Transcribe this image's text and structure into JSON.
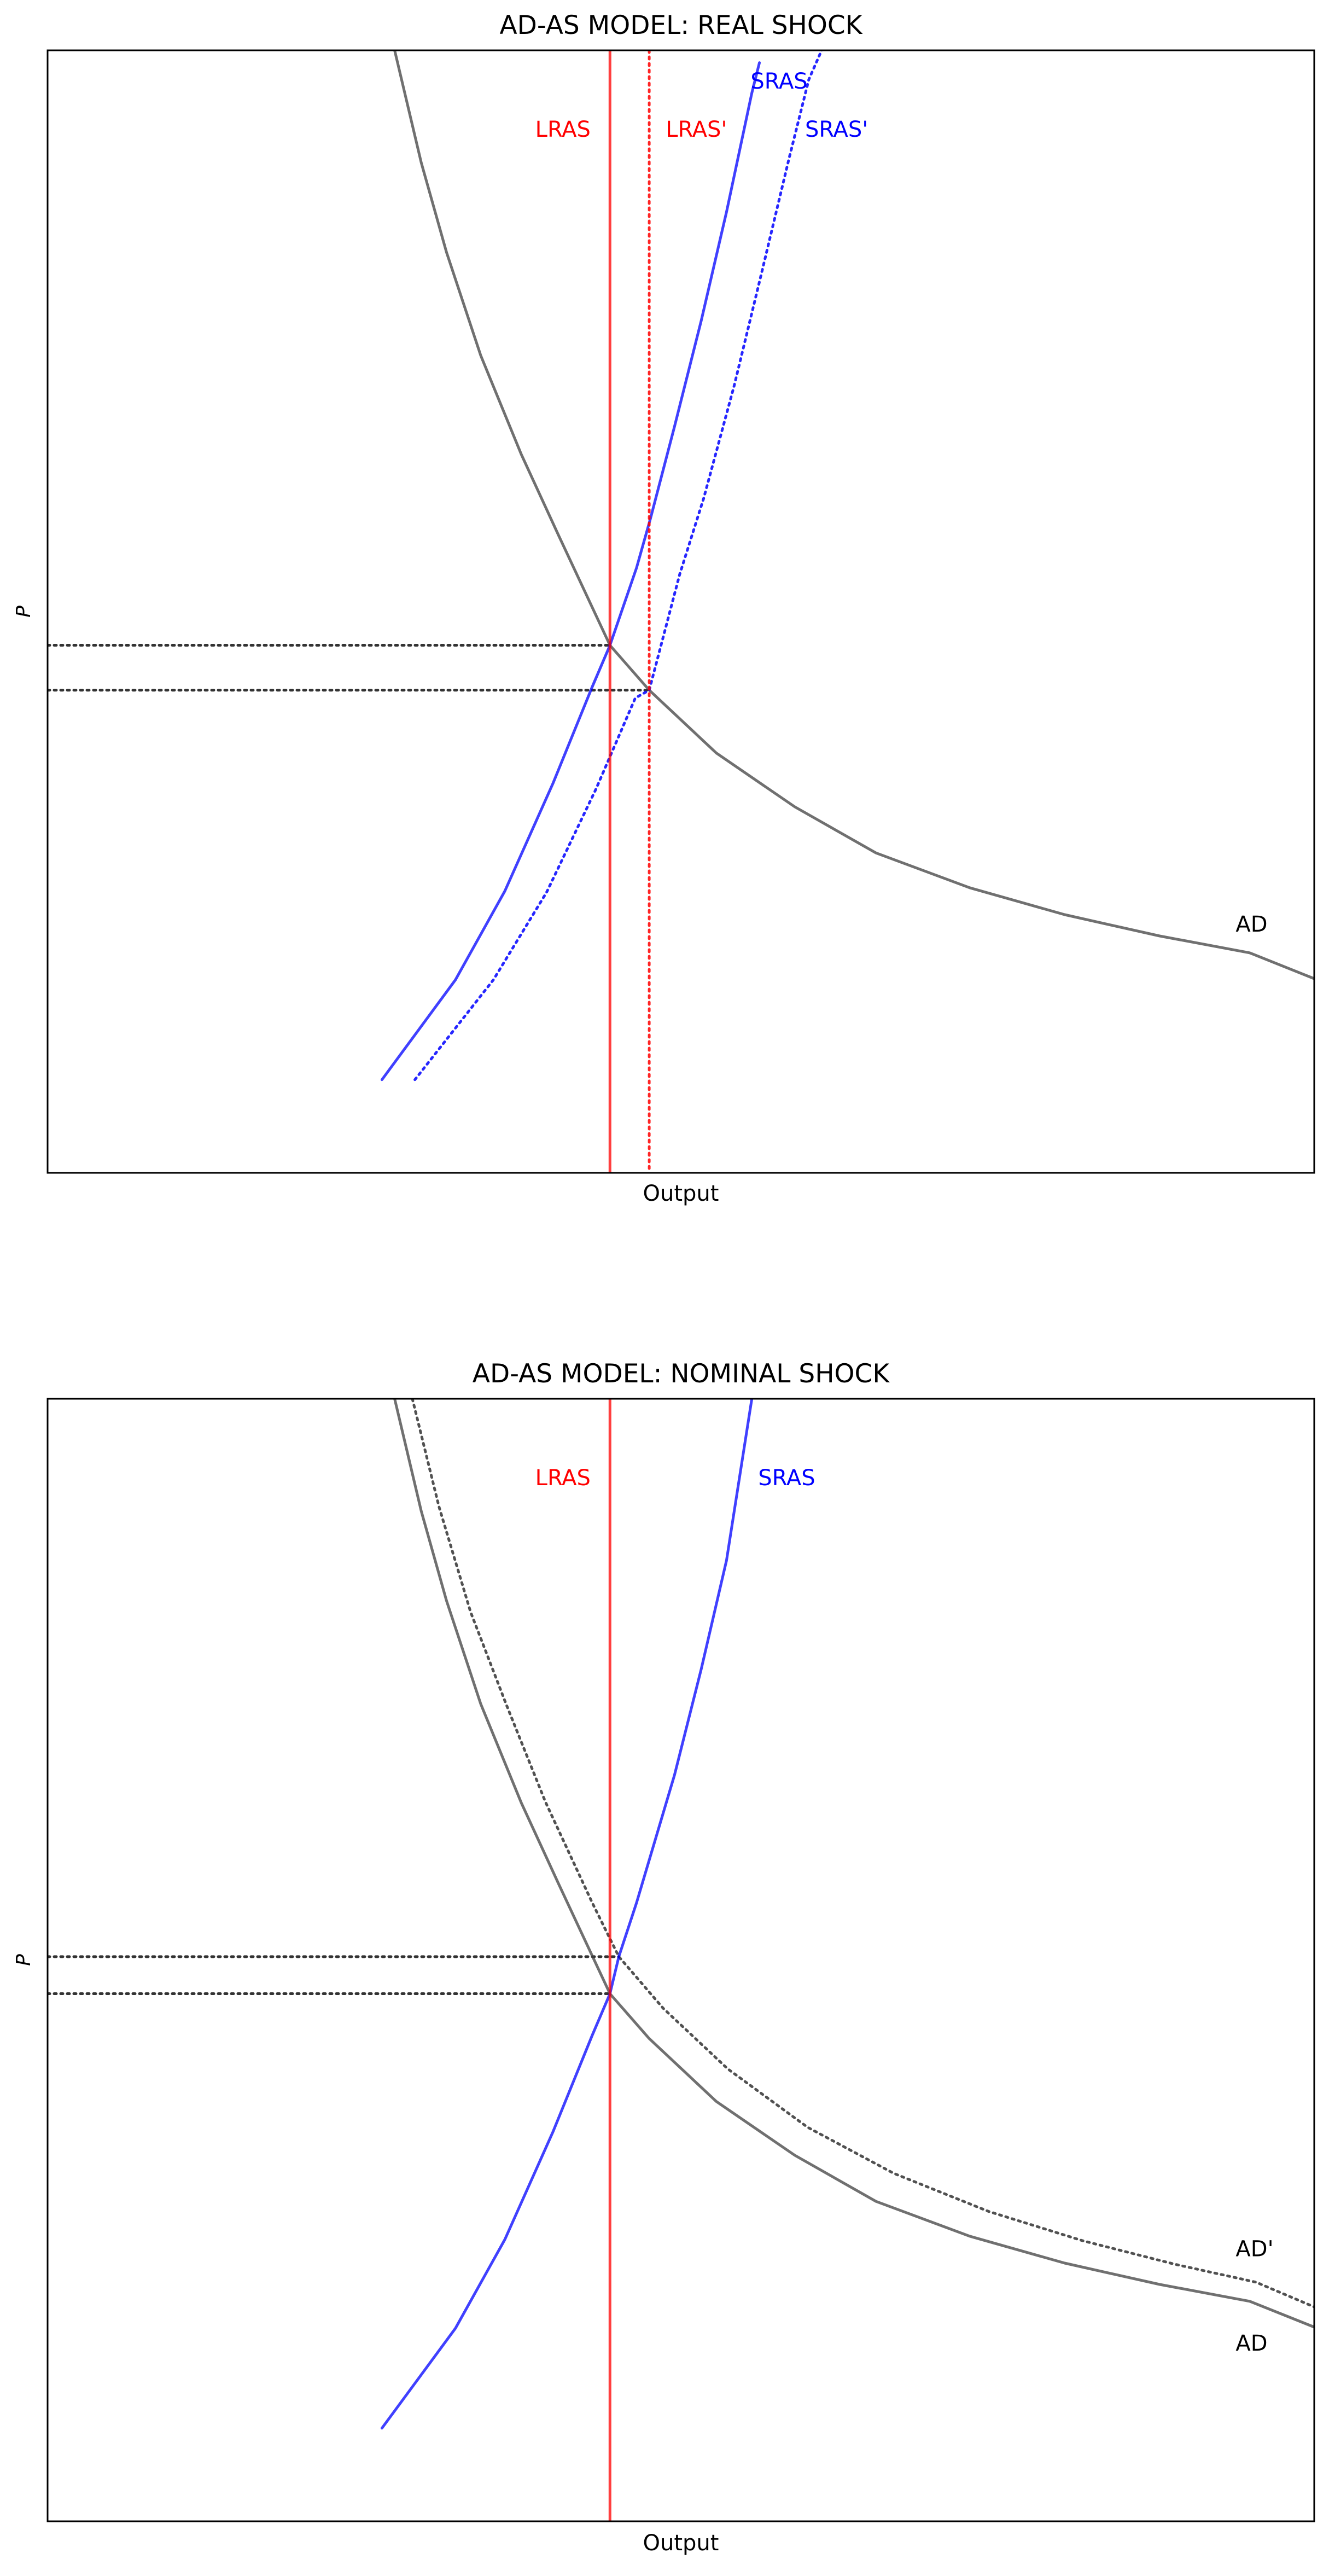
{
  "chart_data": [
    {
      "type": "line",
      "title": "AD-AS MODEL: REAL SHOCK",
      "xlabel": "Output",
      "ylabel": "P",
      "xticks": false,
      "yticks": false,
      "grid": false,
      "xlim": [
        0,
        100
      ],
      "ylim": [
        0,
        100
      ],
      "colors": {
        "lras": "#ff0000",
        "sras": "#0000ff",
        "ad": "#404040",
        "guide": "#333333"
      },
      "vlines": [
        {
          "label": "LRAS",
          "x": 44.4,
          "style": "solid",
          "color": "#ff0000",
          "label_x": 38.5,
          "label_y": 92.3
        },
        {
          "label": "LRAS'",
          "x": 47.5,
          "style": "dotted",
          "color": "#ff0000",
          "label_x": 48.8,
          "label_y": 92.3
        }
      ],
      "sras_curves": [
        {
          "label": "SRAS",
          "style": "solid",
          "color": "#0000ff",
          "points": [
            [
              26.4,
              8.3
            ],
            [
              32.2,
              17.2
            ],
            [
              36.1,
              25.1
            ],
            [
              39.9,
              34.7
            ],
            [
              43.0,
              43.3
            ],
            [
              44.4,
              47.0
            ],
            [
              46.5,
              53.9
            ],
            [
              47.6,
              58.3
            ],
            [
              49.5,
              66.5
            ],
            [
              51.6,
              75.9
            ],
            [
              53.6,
              85.6
            ],
            [
              55.6,
              96.2
            ],
            [
              56.2,
              98.9
            ]
          ],
          "label_x": 55.5,
          "label_y": 96.6
        },
        {
          "label": "SRAS'",
          "style": "dotted",
          "color": "#0000ff",
          "points": [
            [
              29.0,
              8.3
            ],
            [
              35.2,
              17.2
            ],
            [
              39.4,
              25.0
            ],
            [
              43.3,
              34.2
            ],
            [
              46.4,
              42.3
            ],
            [
              47.5,
              43.0
            ],
            [
              49.9,
              53.3
            ],
            [
              51.8,
              60.1
            ],
            [
              54.2,
              70.1
            ],
            [
              56.4,
              80.3
            ],
            [
              58.5,
              90.2
            ],
            [
              60.1,
              97.4
            ],
            [
              61.5,
              101.0
            ]
          ],
          "label_x": 59.8,
          "label_y": 92.3
        }
      ],
      "ad_curves": [
        {
          "label": "AD",
          "style": "solid",
          "color": "#404040",
          "points": [
            [
              27.4,
              100.0
            ],
            [
              29.5,
              90.0
            ],
            [
              31.5,
              82.0
            ],
            [
              34.2,
              72.8
            ],
            [
              37.4,
              64.0
            ],
            [
              40.3,
              56.9
            ],
            [
              44.4,
              47.0
            ],
            [
              47.5,
              43.0
            ],
            [
              52.8,
              37.4
            ],
            [
              59.0,
              32.6
            ],
            [
              65.4,
              28.5
            ],
            [
              72.8,
              25.4
            ],
            [
              80.3,
              23.0
            ],
            [
              87.8,
              21.1
            ],
            [
              94.9,
              19.6
            ],
            [
              100.0,
              17.3
            ]
          ],
          "label_x": 93.8,
          "label_y": 21.5
        }
      ],
      "hlines": [
        {
          "y": 47.0,
          "x_from": 0,
          "x_to": 44.4,
          "style": "dotted"
        },
        {
          "y": 43.0,
          "x_from": 0,
          "x_to": 47.5,
          "style": "dotted"
        }
      ]
    },
    {
      "type": "line",
      "title": "AD-AS MODEL: NOMINAL SHOCK",
      "xlabel": "Output",
      "ylabel": "P",
      "xticks": false,
      "yticks": false,
      "grid": false,
      "xlim": [
        0,
        100
      ],
      "ylim": [
        0,
        100
      ],
      "colors": {
        "lras": "#ff0000",
        "sras": "#0000ff",
        "ad": "#404040",
        "guide": "#333333"
      },
      "vlines": [
        {
          "label": "LRAS",
          "x": 44.4,
          "style": "solid",
          "color": "#ff0000",
          "label_x": 38.5,
          "label_y": 92.3
        }
      ],
      "sras_curves": [
        {
          "label": "SRAS",
          "style": "solid",
          "color": "#0000ff",
          "points": [
            [
              26.4,
              8.3
            ],
            [
              32.2,
              17.2
            ],
            [
              36.1,
              25.1
            ],
            [
              39.9,
              34.7
            ],
            [
              43.0,
              43.3
            ],
            [
              44.4,
              47.0
            ],
            [
              45.1,
              50.3
            ],
            [
              46.5,
              55.1
            ],
            [
              49.5,
              66.5
            ],
            [
              51.6,
              75.9
            ],
            [
              53.6,
              85.6
            ],
            [
              55.6,
              100.0
            ]
          ],
          "label_x": 56.1,
          "label_y": 92.3
        }
      ],
      "ad_curves": [
        {
          "label": "AD",
          "style": "solid",
          "color": "#404040",
          "points": [
            [
              27.4,
              100.0
            ],
            [
              29.5,
              90.0
            ],
            [
              31.5,
              82.0
            ],
            [
              34.2,
              72.8
            ],
            [
              37.4,
              64.0
            ],
            [
              40.3,
              56.9
            ],
            [
              44.4,
              47.0
            ],
            [
              47.5,
              43.0
            ],
            [
              52.8,
              37.4
            ],
            [
              59.0,
              32.6
            ],
            [
              65.4,
              28.5
            ],
            [
              72.8,
              25.4
            ],
            [
              80.3,
              23.0
            ],
            [
              87.8,
              21.1
            ],
            [
              94.9,
              19.6
            ],
            [
              100.0,
              17.3
            ]
          ],
          "label_x": 93.8,
          "label_y": 15.2
        },
        {
          "label": "AD'",
          "style": "dotted",
          "color": "#333333",
          "points": [
            [
              28.8,
              100.0
            ],
            [
              30.9,
              90.4
            ],
            [
              33.4,
              81.0
            ],
            [
              36.2,
              72.8
            ],
            [
              39.3,
              64.1
            ],
            [
              43.0,
              55.1
            ],
            [
              45.1,
              50.3
            ],
            [
              48.6,
              45.7
            ],
            [
              53.7,
              40.3
            ],
            [
              60.0,
              35.1
            ],
            [
              66.8,
              31.0
            ],
            [
              74.3,
              27.6
            ],
            [
              81.7,
              25.0
            ],
            [
              89.0,
              22.9
            ],
            [
              95.4,
              21.3
            ],
            [
              100.0,
              19.1
            ]
          ],
          "label_x": 93.8,
          "label_y": 23.6
        }
      ],
      "hlines": [
        {
          "y": 50.3,
          "x_from": 0,
          "x_to": 45.1,
          "style": "dotted"
        },
        {
          "y": 47.0,
          "x_from": 0,
          "x_to": 44.4,
          "style": "dotted"
        }
      ]
    }
  ]
}
